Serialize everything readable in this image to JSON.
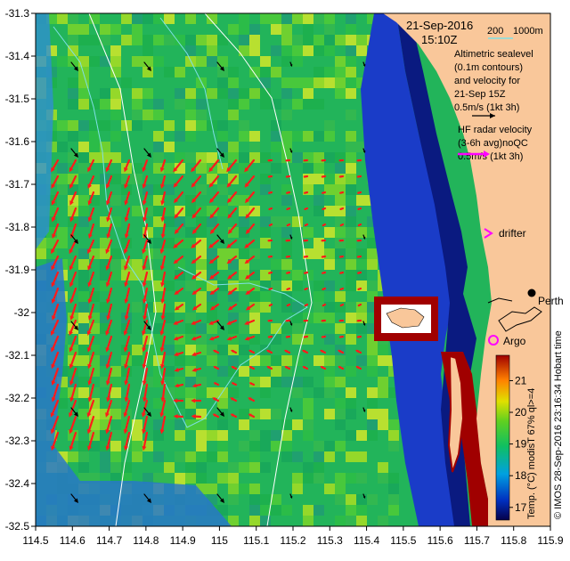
{
  "header": {
    "date": "21-Sep-2016",
    "time": "15:10Z",
    "isobath_labels": [
      "200",
      "1000m"
    ]
  },
  "legend": {
    "altimetry_lines": [
      "Altimetric sealevel",
      "(0.1m contours)",
      "and velocity for",
      "21-Sep 15Z",
      "0.5m/s (1kt 3h)"
    ],
    "radar_lines": [
      "HF radar velocity",
      "(3-6h avg)noQC",
      "0.5m/s (1kt 3h)"
    ]
  },
  "places": {
    "drifter": "drifter",
    "argo": "Argo",
    "city": "Perth"
  },
  "credit": "© IMOS 28-Sep-2016 23:16:34 Hobart time",
  "colorbar": {
    "label": "Temp. (°C) modisT 67% ql>=4",
    "ticks": [
      "17",
      "18",
      "19",
      "20",
      "21"
    ],
    "range": [
      16.6,
      21.8
    ]
  },
  "axes": {
    "x_ticks": [
      "114.5",
      "114.6",
      "114.7",
      "114.8",
      "114.9",
      "115",
      "115.1",
      "115.2",
      "115.3",
      "115.4",
      "115.5",
      "115.6",
      "115.7",
      "115.8",
      "115.9"
    ],
    "y_ticks": [
      "-31.3",
      "-31.4",
      "-31.5",
      "-31.6",
      "-31.7",
      "-31.8",
      "-31.9",
      "-32",
      "-32.1",
      "-32.2",
      "-32.3",
      "-32.4",
      "-32.5"
    ],
    "lon_range": [
      114.5,
      115.9
    ],
    "lat_range": [
      -32.5,
      -31.3
    ]
  },
  "colors": {
    "land": "#f9c79a",
    "radar_arrow": "#ff1a1a",
    "altimetry_arrow": "#000000",
    "isobath": "#ffffff",
    "contour": "#7fe0e6",
    "argo": "#ff00ff",
    "drifter": "#ff00ff"
  }
}
